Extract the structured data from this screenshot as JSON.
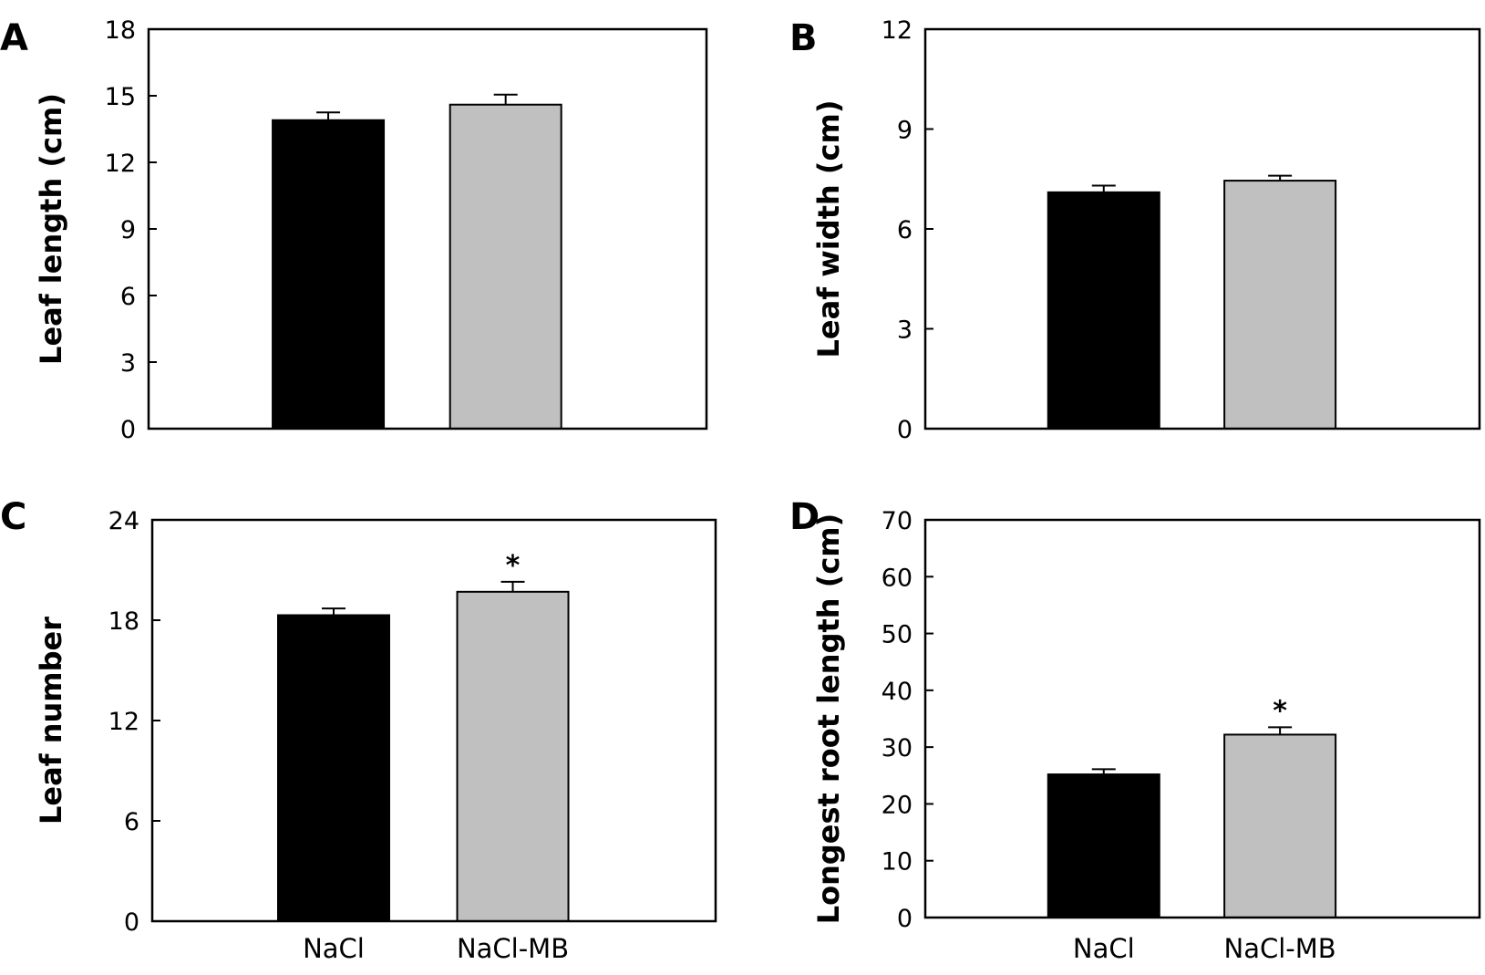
{
  "chart_data": [
    {
      "panel": "A",
      "type": "bar",
      "categories": [
        "NaCl",
        "NaCl-MB"
      ],
      "show_category_labels": false,
      "values": [
        13.9,
        14.6
      ],
      "errors": [
        0.35,
        0.45
      ],
      "significance": [
        "",
        ""
      ],
      "colors": [
        "#000000",
        "#c0c0c0"
      ],
      "ylabel": "Leaf length (cm)",
      "ylim": [
        0,
        18
      ],
      "yticks": [
        0,
        3,
        6,
        9,
        12,
        15,
        18
      ],
      "grid": false
    },
    {
      "panel": "B",
      "type": "bar",
      "categories": [
        "NaCl",
        "NaCl-MB"
      ],
      "show_category_labels": false,
      "values": [
        7.1,
        7.45
      ],
      "errors": [
        0.2,
        0.15
      ],
      "significance": [
        "",
        ""
      ],
      "colors": [
        "#000000",
        "#c0c0c0"
      ],
      "ylabel": "Leaf width (cm)",
      "ylim": [
        0,
        12
      ],
      "yticks": [
        0,
        3,
        6,
        9,
        12
      ],
      "grid": false
    },
    {
      "panel": "C",
      "type": "bar",
      "categories": [
        "NaCl",
        "NaCl-MB"
      ],
      "show_category_labels": true,
      "values": [
        18.3,
        19.7
      ],
      "errors": [
        0.4,
        0.6
      ],
      "significance": [
        "",
        "*"
      ],
      "colors": [
        "#000000",
        "#c0c0c0"
      ],
      "ylabel": "Leaf number",
      "ylim": [
        0,
        24
      ],
      "yticks": [
        0,
        6,
        12,
        18,
        24
      ],
      "grid": false
    },
    {
      "panel": "D",
      "type": "bar",
      "categories": [
        "NaCl",
        "NaCl-MB"
      ],
      "show_category_labels": true,
      "values": [
        25.2,
        32.2
      ],
      "errors": [
        0.9,
        1.3
      ],
      "significance": [
        "",
        "*"
      ],
      "colors": [
        "#000000",
        "#c0c0c0"
      ],
      "ylabel": "Longest root length (cm)",
      "ylim": [
        0,
        70
      ],
      "yticks": [
        0,
        10,
        20,
        30,
        40,
        50,
        60,
        70
      ],
      "grid": false
    }
  ]
}
